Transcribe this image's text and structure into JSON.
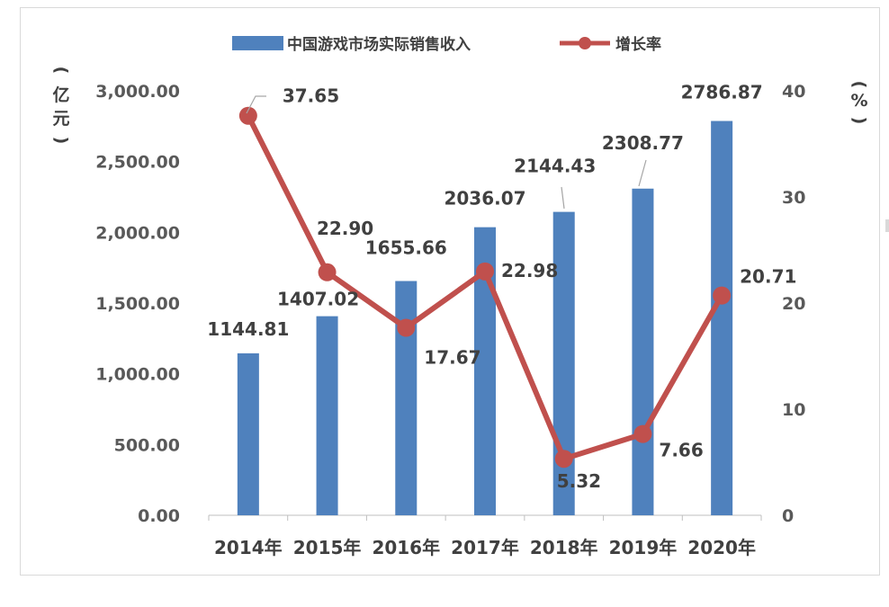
{
  "chart_data": {
    "type": "bar+line",
    "categories": [
      "2014年",
      "2015年",
      "2016年",
      "2017年",
      "2018年",
      "2019年",
      "2020年"
    ],
    "series": [
      {
        "name": "中国游戏市场实际销售收入",
        "type": "bar",
        "axis": "left",
        "values": [
          1144.81,
          1407.02,
          1655.66,
          2036.07,
          2144.43,
          2308.77,
          2786.87
        ],
        "labels": [
          "1144.81",
          "1407.02",
          "1655.66",
          "2036.07",
          "2144.43",
          "2308.77",
          "2786.87"
        ],
        "color": "#4f81bd"
      },
      {
        "name": "增长率",
        "type": "line",
        "axis": "right",
        "values": [
          37.65,
          22.9,
          17.67,
          22.98,
          5.32,
          7.66,
          20.71
        ],
        "labels": [
          "37.65",
          "22.90",
          "17.67",
          "22.98",
          "5.32",
          "7.66",
          "20.71"
        ],
        "color": "#c0504d"
      }
    ],
    "y_left": {
      "unit_label": [
        "(",
        "亿",
        "元",
        ")"
      ],
      "ylim": [
        0,
        3000
      ],
      "ticks": [
        "0.00",
        "500.00",
        "1,000.00",
        "1,500.00",
        "2,000.00",
        "2,500.00",
        "3,000.00"
      ]
    },
    "y_right": {
      "unit_label": [
        "(",
        "%",
        ")"
      ],
      "ylim": [
        0,
        40
      ],
      "ticks": [
        "0",
        "10",
        "20",
        "30",
        "40"
      ]
    },
    "legend_position": "top",
    "grid": false
  }
}
